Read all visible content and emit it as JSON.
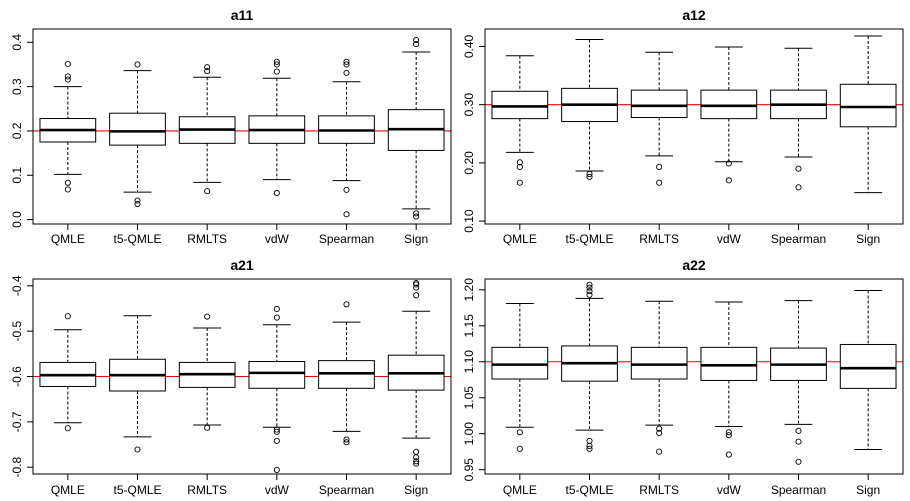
{
  "colors": {
    "reference_line": "#ff0000",
    "box_fill": "#ffffff",
    "stroke": "#000000"
  },
  "chart_data": [
    {
      "type": "boxplot",
      "title": "a11",
      "categories": [
        "QMLE",
        "t5-QMLE",
        "RMLTS",
        "vdW",
        "Spearman",
        "Sign"
      ],
      "reference_line": 0.2,
      "ylim": [
        -0.01,
        0.43
      ],
      "yticks": [
        0.0,
        0.1,
        0.2,
        0.3,
        0.4
      ],
      "ytick_labels": [
        "0.0",
        "0.1",
        "0.2",
        "0.3",
        "0.4"
      ],
      "boxes": [
        {
          "whislo": 0.102,
          "q1": 0.175,
          "med": 0.202,
          "q3": 0.228,
          "whishi": 0.3,
          "fliers": [
            0.068,
            0.083,
            0.316,
            0.323,
            0.351
          ]
        },
        {
          "whislo": 0.062,
          "q1": 0.168,
          "med": 0.199,
          "q3": 0.24,
          "whishi": 0.336,
          "fliers": [
            0.035,
            0.043,
            0.35
          ]
        },
        {
          "whislo": 0.084,
          "q1": 0.172,
          "med": 0.203,
          "q3": 0.232,
          "whishi": 0.321,
          "fliers": [
            0.064,
            0.335,
            0.344
          ]
        },
        {
          "whislo": 0.09,
          "q1": 0.172,
          "med": 0.202,
          "q3": 0.234,
          "whishi": 0.319,
          "fliers": [
            0.06,
            0.334,
            0.35,
            0.356
          ]
        },
        {
          "whislo": 0.088,
          "q1": 0.172,
          "med": 0.201,
          "q3": 0.234,
          "whishi": 0.311,
          "fliers": [
            0.012,
            0.067,
            0.331,
            0.35,
            0.356
          ]
        },
        {
          "whislo": 0.024,
          "q1": 0.156,
          "med": 0.204,
          "q3": 0.248,
          "whishi": 0.378,
          "fliers": [
            0.007,
            0.014,
            0.396,
            0.405
          ]
        }
      ]
    },
    {
      "type": "boxplot",
      "title": "a12",
      "categories": [
        "QMLE",
        "t5-QMLE",
        "RMLTS",
        "vdW",
        "Spearman",
        "Sign"
      ],
      "reference_line": 0.3,
      "ylim": [
        0.095,
        0.43
      ],
      "yticks": [
        0.1,
        0.2,
        0.3,
        0.4
      ],
      "ytick_labels": [
        "0.10",
        "0.20",
        "0.30",
        "0.40"
      ],
      "boxes": [
        {
          "whislo": 0.218,
          "q1": 0.276,
          "med": 0.297,
          "q3": 0.323,
          "whishi": 0.384,
          "fliers": [
            0.166,
            0.193,
            0.201
          ]
        },
        {
          "whislo": 0.186,
          "q1": 0.271,
          "med": 0.3,
          "q3": 0.328,
          "whishi": 0.412,
          "fliers": [
            0.176,
            0.181
          ]
        },
        {
          "whislo": 0.212,
          "q1": 0.278,
          "med": 0.298,
          "q3": 0.325,
          "whishi": 0.39,
          "fliers": [
            0.166,
            0.193
          ]
        },
        {
          "whislo": 0.202,
          "q1": 0.276,
          "med": 0.298,
          "q3": 0.325,
          "whishi": 0.399,
          "fliers": [
            0.17,
            0.199
          ]
        },
        {
          "whislo": 0.21,
          "q1": 0.276,
          "med": 0.3,
          "q3": 0.325,
          "whishi": 0.397,
          "fliers": [
            0.158,
            0.19
          ]
        },
        {
          "whislo": 0.149,
          "q1": 0.262,
          "med": 0.296,
          "q3": 0.335,
          "whishi": 0.418,
          "fliers": []
        }
      ]
    },
    {
      "type": "boxplot",
      "title": "a21",
      "categories": [
        "QMLE",
        "t5-QMLE",
        "RMLTS",
        "vdW",
        "Spearman",
        "Sign"
      ],
      "reference_line": -0.6,
      "ylim": [
        -0.815,
        -0.385
      ],
      "yticks": [
        -0.8,
        -0.7,
        -0.6,
        -0.5,
        -0.4
      ],
      "ytick_labels": [
        "-0.8",
        "-0.7",
        "-0.6",
        "-0.5",
        "-0.4"
      ],
      "boxes": [
        {
          "whislo": -0.702,
          "q1": -0.622,
          "med": -0.597,
          "q3": -0.569,
          "whishi": -0.497,
          "fliers": [
            -0.714,
            -0.467
          ]
        },
        {
          "whislo": -0.733,
          "q1": -0.632,
          "med": -0.597,
          "q3": -0.562,
          "whishi": -0.466,
          "fliers": [
            -0.761
          ]
        },
        {
          "whislo": -0.707,
          "q1": -0.624,
          "med": -0.595,
          "q3": -0.569,
          "whishi": -0.493,
          "fliers": [
            -0.713,
            -0.468
          ]
        },
        {
          "whislo": -0.712,
          "q1": -0.626,
          "med": -0.592,
          "q3": -0.567,
          "whishi": -0.486,
          "fliers": [
            -0.806,
            -0.742,
            -0.722,
            -0.717,
            -0.47,
            -0.451
          ]
        },
        {
          "whislo": -0.721,
          "q1": -0.626,
          "med": -0.593,
          "q3": -0.565,
          "whishi": -0.48,
          "fliers": [
            -0.745,
            -0.739,
            -0.441
          ]
        },
        {
          "whislo": -0.736,
          "q1": -0.63,
          "med": -0.593,
          "q3": -0.553,
          "whishi": -0.456,
          "fliers": [
            -0.792,
            -0.787,
            -0.778,
            -0.766,
            -0.421,
            -0.404,
            -0.397,
            -0.394
          ]
        }
      ]
    },
    {
      "type": "boxplot",
      "title": "a22",
      "categories": [
        "QMLE",
        "t5-QMLE",
        "RMLTS",
        "vdW",
        "Spearman",
        "Sign"
      ],
      "reference_line": 1.1,
      "ylim": [
        0.944,
        1.215
      ],
      "yticks": [
        0.95,
        1.0,
        1.05,
        1.1,
        1.15,
        1.2
      ],
      "ytick_labels": [
        "0.95",
        "1.00",
        "1.05",
        "1.10",
        "1.15",
        "1.20"
      ],
      "boxes": [
        {
          "whislo": 1.009,
          "q1": 1.076,
          "med": 1.096,
          "q3": 1.12,
          "whishi": 1.181,
          "fliers": [
            0.979,
            1.002
          ]
        },
        {
          "whislo": 1.005,
          "q1": 1.073,
          "med": 1.098,
          "q3": 1.122,
          "whishi": 1.188,
          "fliers": [
            0.979,
            0.983,
            0.99,
            1.193,
            1.198,
            1.203,
            1.207
          ]
        },
        {
          "whislo": 1.012,
          "q1": 1.076,
          "med": 1.096,
          "q3": 1.12,
          "whishi": 1.184,
          "fliers": [
            0.975,
            1.001,
            1.007
          ]
        },
        {
          "whislo": 1.01,
          "q1": 1.074,
          "med": 1.095,
          "q3": 1.12,
          "whishi": 1.183,
          "fliers": [
            0.971,
            0.998,
            1.002
          ]
        },
        {
          "whislo": 1.013,
          "q1": 1.074,
          "med": 1.096,
          "q3": 1.119,
          "whishi": 1.185,
          "fliers": [
            0.961,
            0.989,
            1.004
          ]
        },
        {
          "whislo": 0.978,
          "q1": 1.063,
          "med": 1.091,
          "q3": 1.124,
          "whishi": 1.199,
          "fliers": []
        }
      ]
    }
  ]
}
